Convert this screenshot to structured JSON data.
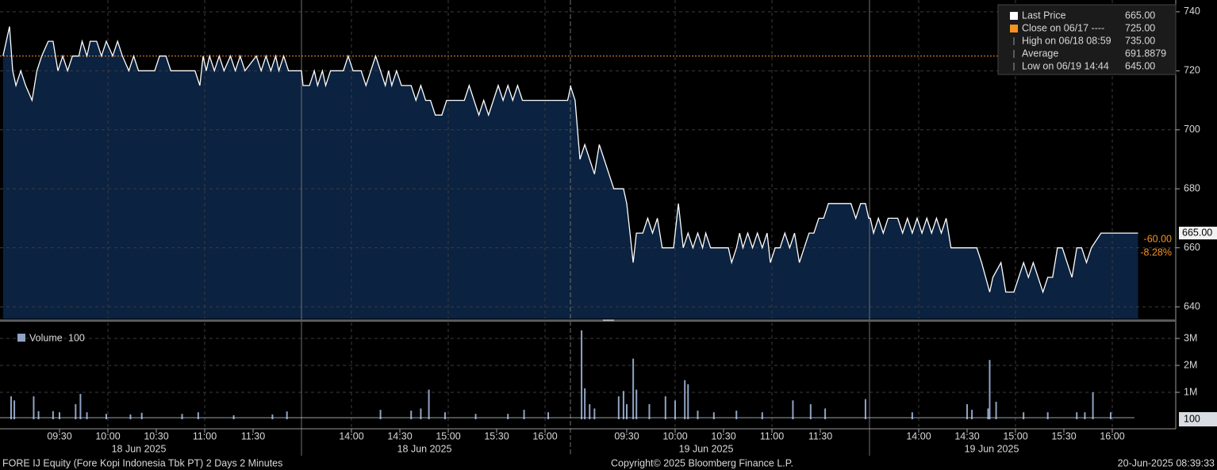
{
  "chart_data": [
    {
      "type": "line",
      "color": "#ffffff",
      "fill": "#0b2240",
      "grid": true,
      "ylim": [
        636,
        744
      ],
      "yticks": [
        640,
        660,
        680,
        700,
        720,
        740
      ],
      "legend": [
        {
          "name": "Last Price",
          "value": 665,
          "label": "665.00",
          "color": "#ffffff"
        },
        {
          "name": "Close on 06/17 ----",
          "value": 725,
          "label": "725.00",
          "color": "#f7931e"
        },
        {
          "name": "High on 06/18 08:59",
          "value": 735,
          "label": "735.00"
        },
        {
          "name": "Average",
          "value": 691.8879,
          "label": "691.8879"
        },
        {
          "name": "Low on 06/19 14:44",
          "value": 645,
          "label": "645.00"
        }
      ],
      "last_value": {
        "value": 665,
        "label": "665.00"
      },
      "change": {
        "value": -60,
        "label": "-60.00"
      },
      "change_pct": {
        "value": -8.28,
        "label": "-8.28%"
      },
      "days": [
        {
          "label": "18 Jun 2025",
          "xticks": [
            "09:30",
            "10:00",
            "10:30",
            "11:00",
            "11:30",
            "14:00",
            "14:30",
            "15:00",
            "15:30",
            "16:00"
          ],
          "x": [
            "08:55",
            "08:59",
            "09:01",
            "09:03",
            "09:06",
            "09:09",
            "09:13",
            "09:16",
            "09:19",
            "09:23",
            "09:26",
            "09:29",
            "09:32",
            "09:35",
            "09:38",
            "09:42",
            "09:44",
            "09:47",
            "09:49",
            "09:53",
            "09:56",
            "09:59",
            "10:03",
            "10:06",
            "10:09",
            "10:13",
            "10:16",
            "10:19",
            "10:29",
            "10:32",
            "10:36",
            "10:39",
            "10:54",
            "10:57",
            "10:59",
            "11:01",
            "11:03",
            "11:06",
            "11:09",
            "11:12",
            "11:16",
            "11:19",
            "11:22",
            "11:25",
            "11:32",
            "11:35",
            "11:38",
            "11:41",
            "11:44",
            "11:46",
            "11:49",
            "11:52",
            "12:00",
            "13:30",
            "13:34",
            "13:37",
            "13:39",
            "13:42",
            "13:44",
            "13:47",
            "13:55",
            "13:58",
            "14:01",
            "14:06",
            "14:09",
            "14:12",
            "14:15",
            "14:18",
            "14:21",
            "14:23",
            "14:25",
            "14:28",
            "14:31",
            "14:37",
            "14:40",
            "14:43",
            "14:46",
            "14:49",
            "14:52",
            "14:56",
            "14:59",
            "15:10",
            "15:13",
            "15:16",
            "15:19",
            "15:22",
            "15:25",
            "15:28",
            "15:31",
            "15:34",
            "15:37",
            "15:40",
            "15:43",
            "15:46",
            "16:14",
            "16:16"
          ],
          "values": [
            725,
            735,
            720,
            715,
            720,
            715,
            710,
            720,
            725,
            730,
            730,
            720,
            725,
            720,
            725,
            725,
            730,
            725,
            730,
            730,
            725,
            730,
            725,
            730,
            725,
            720,
            725,
            720,
            720,
            725,
            725,
            720,
            720,
            715,
            725,
            720,
            725,
            720,
            725,
            720,
            725,
            720,
            725,
            720,
            725,
            720,
            725,
            720,
            725,
            720,
            725,
            720,
            720,
            715,
            715,
            720,
            715,
            720,
            715,
            720,
            720,
            725,
            720,
            720,
            715,
            720,
            725,
            720,
            715,
            720,
            715,
            720,
            715,
            715,
            710,
            715,
            710,
            710,
            705,
            705,
            710,
            710,
            715,
            710,
            705,
            710,
            705,
            710,
            715,
            710,
            715,
            710,
            715,
            710,
            710,
            715
          ]
        },
        {
          "label": "19 Jun 2025",
          "xticks": [
            "09:30",
            "10:00",
            "10:30",
            "11:00",
            "11:30",
            "14:00",
            "14:30",
            "15:00",
            "15:30",
            "16:00"
          ],
          "x": [
            "08:55",
            "08:58",
            "09:01",
            "09:04",
            "09:07",
            "09:10",
            "09:13",
            "09:16",
            "09:19",
            "09:22",
            "09:28",
            "09:30",
            "09:32",
            "09:34",
            "09:36",
            "09:40",
            "09:43",
            "09:46",
            "09:49",
            "09:52",
            "09:59",
            "10:02",
            "10:05",
            "10:08",
            "10:11",
            "10:14",
            "10:17",
            "10:19",
            "10:22",
            "10:33",
            "10:35",
            "10:38",
            "10:40",
            "10:42",
            "10:45",
            "10:48",
            "10:51",
            "10:54",
            "10:57",
            "10:59",
            "11:02",
            "11:05",
            "11:08",
            "11:11",
            "11:14",
            "11:17",
            "11:20",
            "11:23",
            "11:26",
            "11:29",
            "11:32",
            "11:35",
            "11:49",
            "11:52",
            "11:55",
            "11:58",
            "12:00",
            "13:30",
            "13:32",
            "13:35",
            "13:38",
            "13:41",
            "13:47",
            "13:50",
            "13:53",
            "13:56",
            "13:59",
            "14:02",
            "14:05",
            "14:08",
            "14:11",
            "14:14",
            "14:17",
            "14:20",
            "14:36",
            "14:39",
            "14:44",
            "14:46",
            "14:51",
            "14:54",
            "14:59",
            "15:02",
            "15:05",
            "15:08",
            "15:11",
            "15:14",
            "15:17",
            "15:20",
            "15:23",
            "15:26",
            "15:29",
            "15:32",
            "15:35",
            "15:38",
            "15:41",
            "15:44",
            "15:47",
            "15:53",
            "16:16"
          ],
          "values": [
            715,
            710,
            690,
            695,
            690,
            685,
            695,
            690,
            685,
            680,
            680,
            675,
            665,
            655,
            665,
            665,
            670,
            665,
            670,
            660,
            660,
            675,
            660,
            665,
            660,
            665,
            660,
            665,
            660,
            660,
            655,
            660,
            665,
            660,
            665,
            660,
            665,
            660,
            665,
            655,
            660,
            660,
            665,
            660,
            665,
            655,
            660,
            665,
            665,
            670,
            670,
            675,
            675,
            670,
            675,
            675,
            670,
            670,
            665,
            670,
            665,
            670,
            670,
            665,
            670,
            665,
            670,
            665,
            670,
            665,
            670,
            665,
            670,
            660,
            660,
            655,
            645,
            650,
            655,
            645,
            645,
            650,
            655,
            650,
            655,
            650,
            645,
            650,
            650,
            660,
            660,
            655,
            650,
            660,
            660,
            655,
            660,
            665,
            665
          ]
        }
      ]
    },
    {
      "type": "bar",
      "color": "#8fa3c4",
      "grid": true,
      "ylim": [
        0,
        3500000
      ],
      "yticks": [
        {
          "value": 1000000,
          "label": "1M"
        },
        {
          "value": 2000000,
          "label": "2M"
        },
        {
          "value": 3000000,
          "label": "3M"
        }
      ],
      "legend": {
        "name": "Volume",
        "value": 100
      },
      "days": [
        {
          "x": [
            "09:00",
            "09:02",
            "09:14",
            "09:17",
            "09:26",
            "09:30",
            "09:40",
            "09:43",
            "09:47",
            "09:59",
            "10:14",
            "10:21",
            "10:46",
            "10:56",
            "11:18",
            "11:42",
            "11:51",
            "14:18",
            "14:37",
            "14:43",
            "14:48",
            "14:58",
            "15:17",
            "15:37",
            "15:47",
            "16:02"
          ],
          "values": [
            850000,
            700000,
            850000,
            300000,
            300000,
            260000,
            560000,
            940000,
            260000,
            200000,
            180000,
            240000,
            200000,
            260000,
            150000,
            180000,
            290000,
            350000,
            320000,
            400000,
            1100000,
            260000,
            200000,
            200000,
            350000,
            260000
          ]
        },
        {
          "x": [
            "09:02",
            "09:04",
            "09:07",
            "09:10",
            "09:25",
            "09:28",
            "09:30",
            "09:34",
            "09:36",
            "09:44",
            "09:54",
            "10:00",
            "10:06",
            "10:08",
            "10:14",
            "10:24",
            "10:38",
            "10:54",
            "11:13",
            "11:24",
            "11:33",
            "11:58",
            "13:56",
            "14:30",
            "14:33",
            "14:43",
            "14:44",
            "14:48",
            "15:05",
            "15:20",
            "15:38",
            "15:43",
            "15:48",
            "15:59"
          ],
          "values": [
            3300000,
            1150000,
            560000,
            400000,
            850000,
            1050000,
            560000,
            2250000,
            1100000,
            560000,
            850000,
            700000,
            1450000,
            1300000,
            320000,
            260000,
            320000,
            260000,
            700000,
            560000,
            400000,
            750000,
            260000,
            560000,
            350000,
            400000,
            2200000,
            650000,
            260000,
            260000,
            260000,
            260000,
            1000000,
            260000
          ]
        }
      ]
    }
  ],
  "footer": {
    "left": "FORE IJ Equity (Fore Kopi Indonesia Tbk PT) 2 Days 2 Minutes",
    "center": "Copyright© 2025 Bloomberg Finance L.P.",
    "right": "20-Jun-2025 08:39:33"
  }
}
